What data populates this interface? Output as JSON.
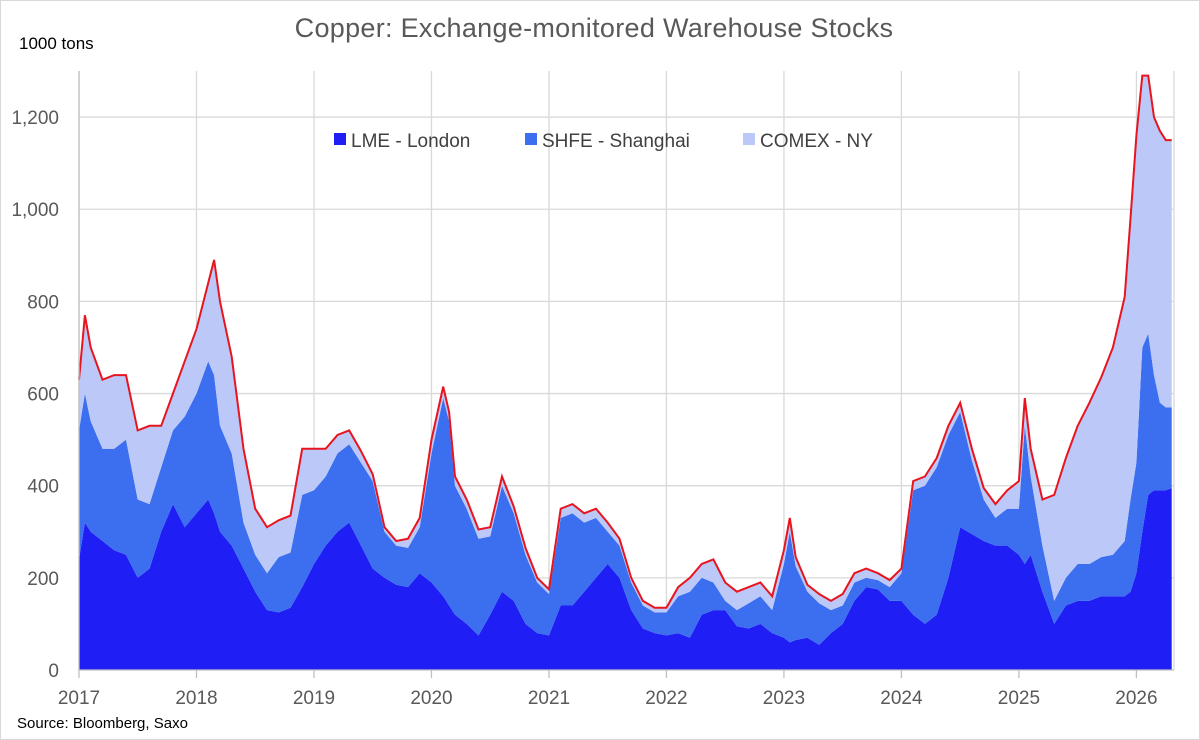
{
  "chart_data": {
    "type": "area",
    "stacked": true,
    "title": "Copper: Exchange-monitored Warehouse Stocks",
    "unit_label": "1000 tons",
    "source": "Source: Bloomberg, Saxo",
    "ylim": [
      0,
      1300
    ],
    "xlim": [
      2017.0,
      2026.32
    ],
    "yticks": [
      0,
      200,
      400,
      600,
      800,
      1000,
      1200
    ],
    "ytick_labels": [
      "0",
      "200",
      "400",
      "600",
      "800",
      "1,000",
      "1,200"
    ],
    "xticks": [
      2017,
      2018,
      2019,
      2020,
      2021,
      2022,
      2023,
      2024,
      2025,
      2026
    ],
    "xtick_labels": [
      "2017",
      "2018",
      "2019",
      "2020",
      "2021",
      "2022",
      "2023",
      "2024",
      "2025",
      "2026"
    ],
    "grid": "vertical and horizontal",
    "legend_position": "top-center",
    "colors": {
      "lme": "#1f1ff5",
      "shfe": "#3b6ff0",
      "comex": "#bcc9f8",
      "total_line": "#e8141e",
      "grid": "#d9d9d9"
    },
    "x": [
      2017.0,
      2017.05,
      2017.1,
      2017.2,
      2017.3,
      2017.4,
      2017.5,
      2017.6,
      2017.7,
      2017.8,
      2017.9,
      2018.0,
      2018.1,
      2018.15,
      2018.2,
      2018.3,
      2018.4,
      2018.5,
      2018.6,
      2018.7,
      2018.8,
      2018.9,
      2019.0,
      2019.1,
      2019.2,
      2019.3,
      2019.4,
      2019.5,
      2019.6,
      2019.7,
      2019.8,
      2019.9,
      2020.0,
      2020.1,
      2020.15,
      2020.2,
      2020.3,
      2020.4,
      2020.5,
      2020.6,
      2020.7,
      2020.8,
      2020.9,
      2021.0,
      2021.1,
      2021.2,
      2021.3,
      2021.4,
      2021.5,
      2021.6,
      2021.7,
      2021.8,
      2021.9,
      2022.0,
      2022.1,
      2022.2,
      2022.3,
      2022.4,
      2022.5,
      2022.6,
      2022.7,
      2022.8,
      2022.9,
      2023.0,
      2023.05,
      2023.1,
      2023.2,
      2023.3,
      2023.4,
      2023.5,
      2023.6,
      2023.7,
      2023.8,
      2023.9,
      2024.0,
      2024.1,
      2024.2,
      2024.3,
      2024.4,
      2024.5,
      2024.6,
      2024.7,
      2024.8,
      2024.9,
      2025.0,
      2025.05,
      2025.1,
      2025.2,
      2025.3,
      2025.4,
      2025.5,
      2025.6,
      2025.7,
      2025.8,
      2025.9,
      2025.95,
      2026.0,
      2026.05,
      2026.1,
      2026.15,
      2026.2,
      2026.25,
      2026.3
    ],
    "series": [
      {
        "name": "LME - London",
        "values": [
          240,
          320,
          300,
          280,
          260,
          250,
          200,
          220,
          300,
          360,
          310,
          340,
          370,
          340,
          300,
          270,
          220,
          170,
          130,
          125,
          135,
          180,
          230,
          270,
          300,
          320,
          270,
          220,
          200,
          185,
          180,
          210,
          190,
          160,
          140,
          120,
          100,
          75,
          120,
          170,
          150,
          100,
          80,
          75,
          140,
          140,
          170,
          200,
          230,
          200,
          130,
          90,
          80,
          75,
          80,
          70,
          120,
          130,
          130,
          95,
          90,
          100,
          80,
          70,
          60,
          65,
          70,
          55,
          80,
          100,
          150,
          180,
          175,
          150,
          150,
          120,
          100,
          120,
          200,
          310,
          295,
          280,
          270,
          270,
          250,
          230,
          250,
          170,
          100,
          140,
          150,
          150,
          160,
          160,
          160,
          170,
          210,
          300,
          380,
          390,
          390,
          390,
          395
        ]
      },
      {
        "name": "SHFE - Shanghai",
        "values": [
          280,
          280,
          240,
          200,
          220,
          250,
          170,
          140,
          140,
          160,
          240,
          260,
          300,
          300,
          230,
          200,
          100,
          80,
          80,
          120,
          120,
          200,
          160,
          150,
          170,
          170,
          180,
          190,
          100,
          85,
          85,
          100,
          280,
          430,
          400,
          280,
          250,
          210,
          170,
          230,
          190,
          150,
          110,
          90,
          190,
          200,
          150,
          130,
          70,
          70,
          60,
          50,
          45,
          50,
          80,
          100,
          80,
          60,
          20,
          35,
          55,
          60,
          50,
          160,
          240,
          160,
          100,
          90,
          50,
          40,
          40,
          20,
          20,
          30,
          60,
          270,
          300,
          320,
          310,
          250,
          160,
          90,
          60,
          80,
          100,
          300,
          170,
          100,
          50,
          60,
          80,
          80,
          85,
          90,
          120,
          200,
          240,
          400,
          350,
          250,
          190,
          180,
          175
        ]
      },
      {
        "name": "COMEX - NY",
        "values": [
          110,
          170,
          160,
          150,
          160,
          140,
          150,
          170,
          90,
          80,
          120,
          140,
          170,
          250,
          270,
          210,
          160,
          100,
          100,
          80,
          80,
          100,
          90,
          60,
          40,
          30,
          25,
          15,
          10,
          10,
          20,
          20,
          30,
          25,
          20,
          20,
          20,
          20,
          20,
          20,
          15,
          15,
          10,
          10,
          20,
          20,
          20,
          20,
          20,
          15,
          10,
          10,
          10,
          10,
          20,
          30,
          30,
          50,
          40,
          40,
          35,
          30,
          30,
          30,
          30,
          20,
          15,
          20,
          20,
          25,
          20,
          20,
          15,
          15,
          10,
          20,
          20,
          20,
          20,
          20,
          25,
          25,
          30,
          40,
          60,
          60,
          60,
          100,
          230,
          260,
          300,
          350,
          390,
          450,
          530,
          610,
          710,
          590,
          560,
          560,
          590,
          580,
          580
        ]
      }
    ]
  },
  "legend": {
    "items": [
      {
        "label": "LME - London",
        "color": "#1f1ff5"
      },
      {
        "label": "SHFE - Shanghai",
        "color": "#3b6ff0"
      },
      {
        "label": "COMEX - NY",
        "color": "#bcc9f8"
      }
    ]
  }
}
